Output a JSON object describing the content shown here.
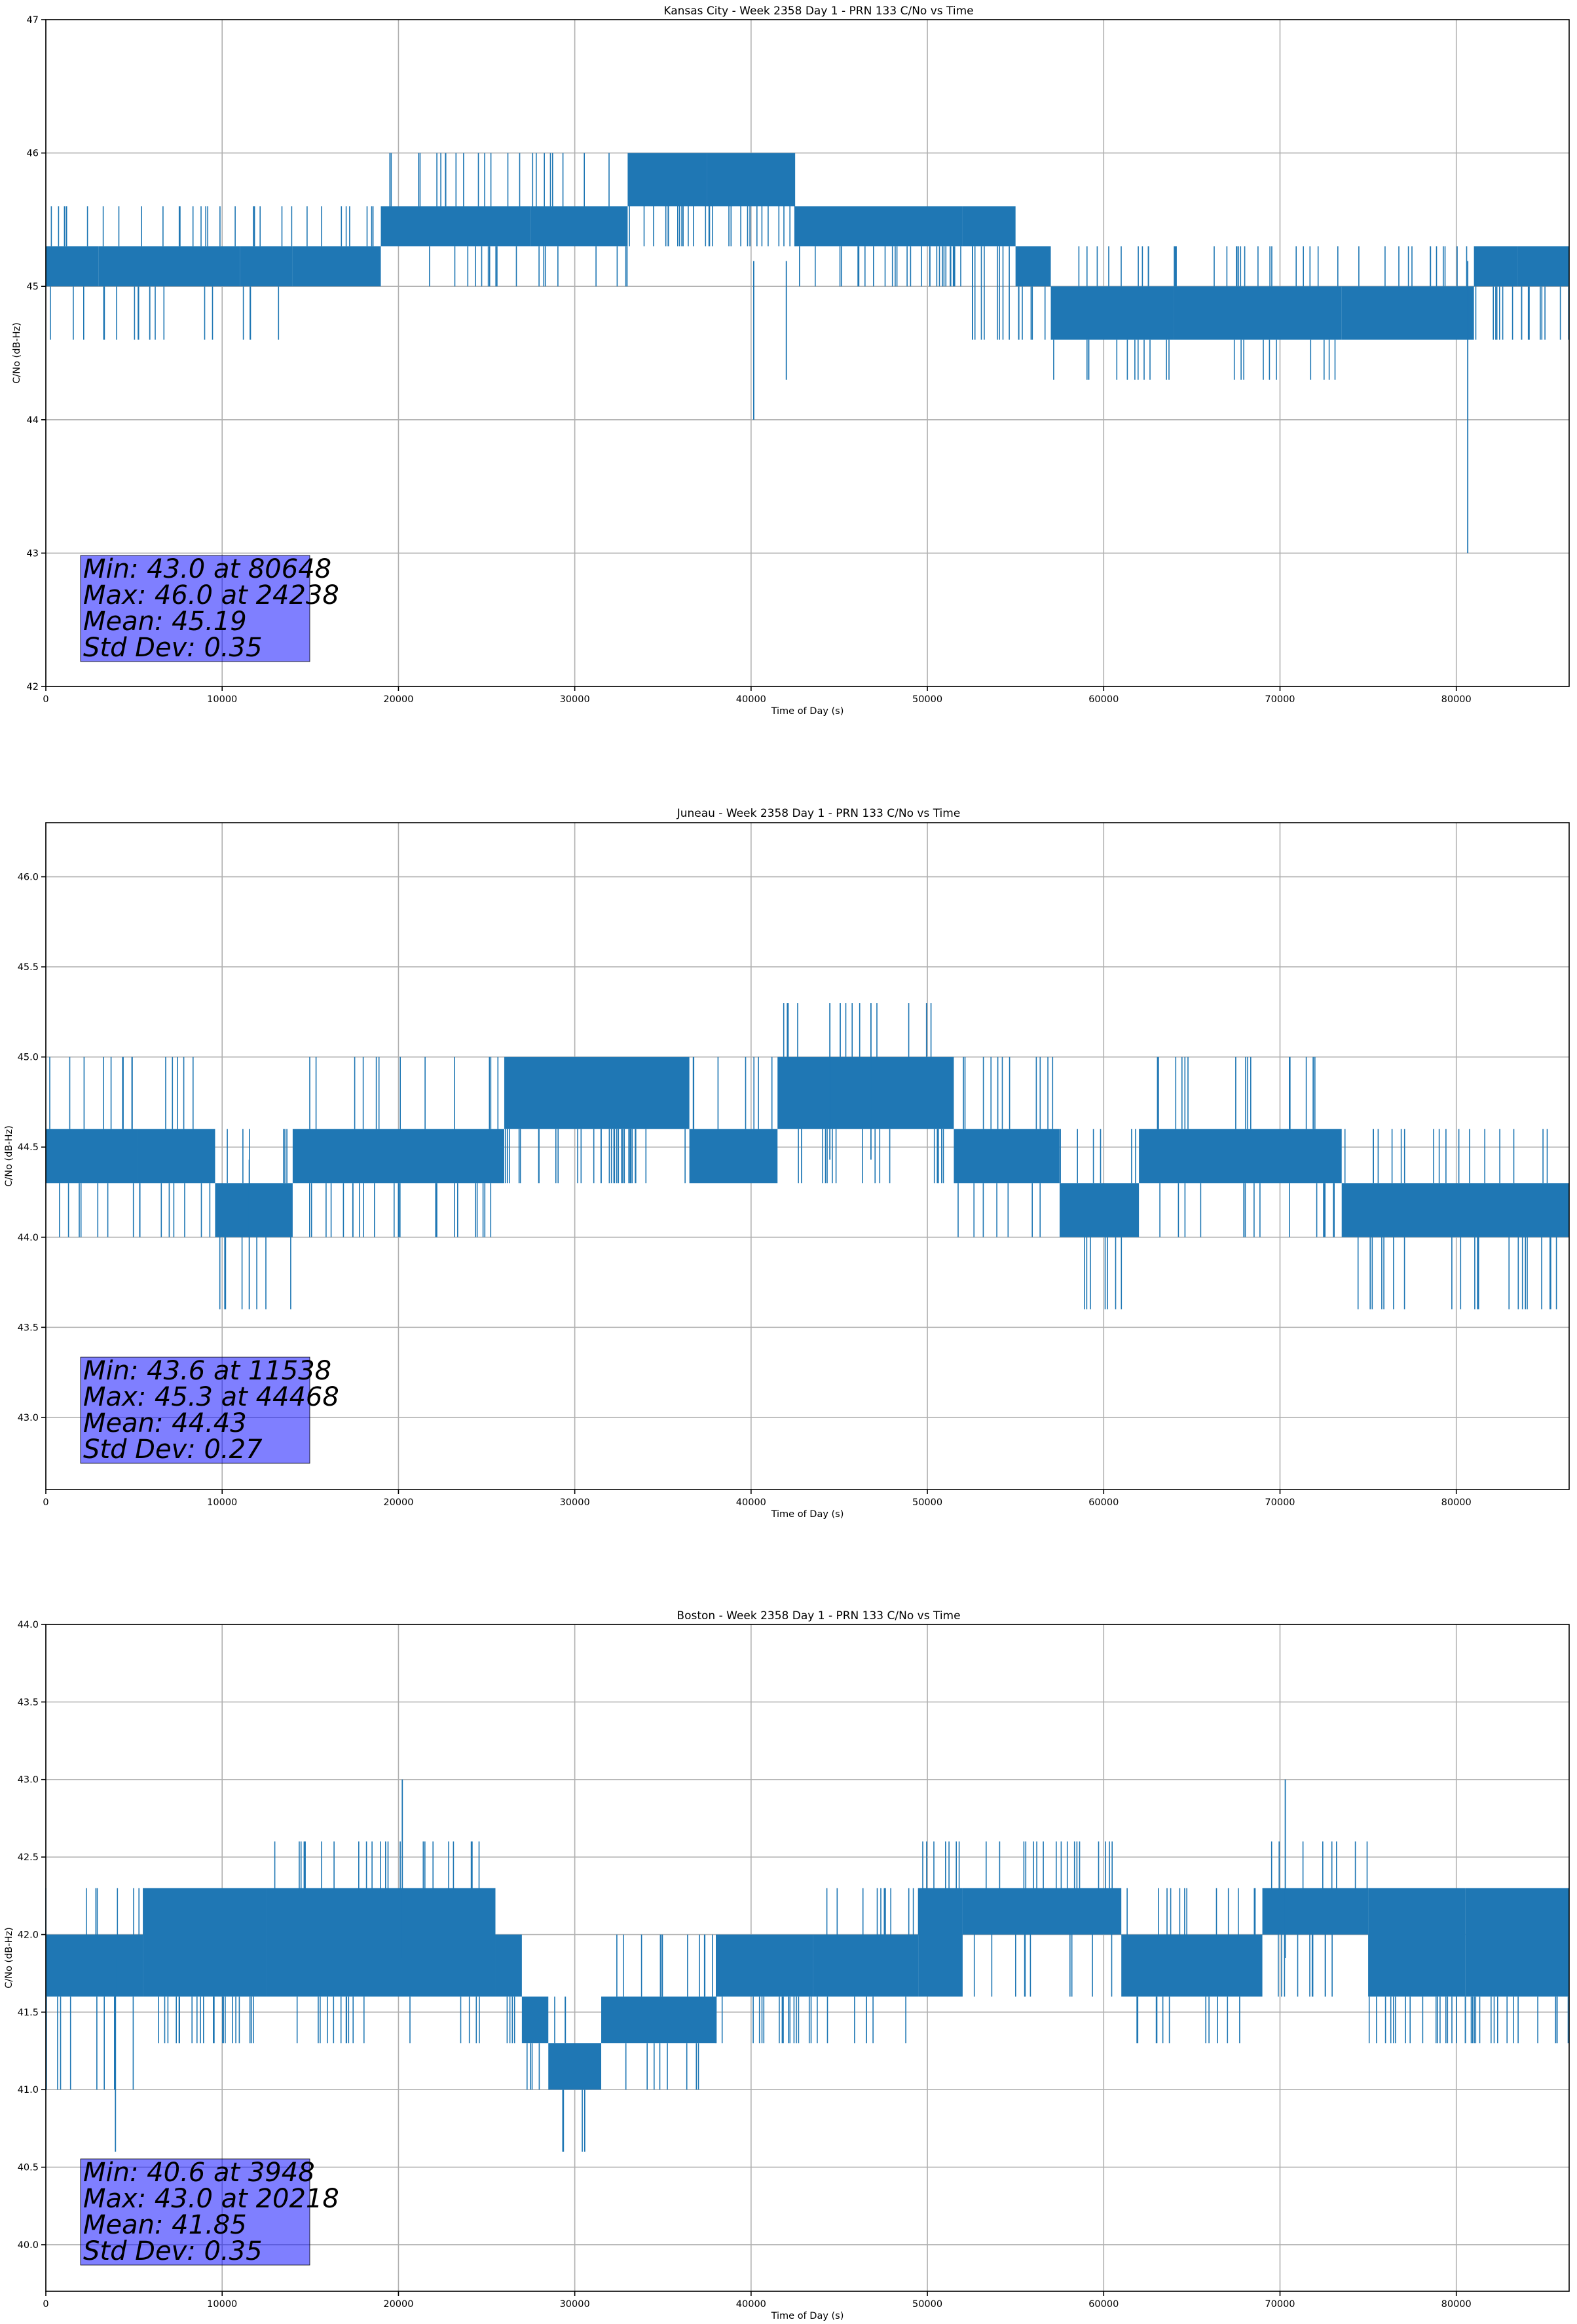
{
  "chart_data": [
    {
      "type": "line",
      "title": "Kansas City - Week 2358 Day 1 - PRN 133 C/No vs Time",
      "xlabel": "Time of Day (s)",
      "ylabel": "C/No (dB-Hz)",
      "xlim": [
        0,
        86400
      ],
      "ylim": [
        42,
        47
      ],
      "xticks": [
        0,
        10000,
        20000,
        30000,
        40000,
        50000,
        60000,
        70000,
        80000
      ],
      "yticks": [
        42,
        43,
        44,
        45,
        46,
        47
      ],
      "ytick_labels": [
        "42",
        "43",
        "44",
        "45",
        "46",
        "47"
      ],
      "grid": true,
      "series_color": "#1f77b4",
      "series": [
        {
          "name": "C/No",
          "segments": [
            {
              "x": [
                0,
                3000
              ],
              "low": 45.0,
              "high": 45.3,
              "spike_low": 44.6,
              "spike_high": 45.6
            },
            {
              "x": [
                3000,
                11000
              ],
              "low": 45.0,
              "high": 45.3,
              "spike_low": 44.6,
              "spike_high": 45.6
            },
            {
              "x": [
                11000,
                14000
              ],
              "low": 45.0,
              "high": 45.3,
              "spike_low": 44.6,
              "spike_high": 45.6
            },
            {
              "x": [
                14000,
                19000
              ],
              "low": 45.0,
              "high": 45.3,
              "spike_low": 45.0,
              "spike_high": 45.6
            },
            {
              "x": [
                19000,
                27500
              ],
              "low": 45.3,
              "high": 45.6,
              "spike_low": 45.0,
              "spike_high": 46.0
            },
            {
              "x": [
                27500,
                33000
              ],
              "low": 45.3,
              "high": 45.6,
              "spike_low": 45.0,
              "spike_high": 46.0
            },
            {
              "x": [
                33000,
                37500
              ],
              "low": 45.6,
              "high": 46.0,
              "spike_low": 45.3,
              "spike_high": 46.0
            },
            {
              "x": [
                37500,
                42500
              ],
              "low": 45.6,
              "high": 46.0,
              "spike_low": 45.3,
              "spike_high": 46.0
            },
            {
              "x": [
                42500,
                52000
              ],
              "low": 45.3,
              "high": 45.6,
              "spike_low": 45.0,
              "spike_high": 45.6
            },
            {
              "x": [
                52000,
                55000
              ],
              "low": 45.3,
              "high": 45.6,
              "spike_low": 44.6,
              "spike_high": 45.6
            },
            {
              "x": [
                55000,
                57000
              ],
              "low": 45.0,
              "high": 45.3,
              "spike_low": 44.6,
              "spike_high": 45.3
            },
            {
              "x": [
                57000,
                64000
              ],
              "low": 44.6,
              "high": 45.0,
              "spike_low": 44.3,
              "spike_high": 45.3
            },
            {
              "x": [
                64000,
                73500
              ],
              "low": 44.6,
              "high": 45.0,
              "spike_low": 44.3,
              "spike_high": 45.3
            },
            {
              "x": [
                73500,
                81000
              ],
              "low": 44.6,
              "high": 45.0,
              "spike_low": 44.6,
              "spike_high": 45.3
            },
            {
              "x": [
                81000,
                83500
              ],
              "low": 45.0,
              "high": 45.3,
              "spike_low": 44.6,
              "spike_high": 45.3
            },
            {
              "x": [
                83500,
                86400
              ],
              "low": 45.0,
              "high": 45.3,
              "spike_low": 44.6,
              "spike_high": 45.3
            }
          ]
        }
      ],
      "min": {
        "value": 43.0,
        "time": 80648
      },
      "max": {
        "value": 46.0,
        "time": 24238
      },
      "mean": 45.19,
      "std_dev": 0.35,
      "outliers": [
        {
          "x": 40150,
          "y": 44.0
        },
        {
          "x": 42000,
          "y": 44.3
        },
        {
          "x": 80648,
          "y": 43.0
        }
      ],
      "annotation": [
        "Min: 43.0 at 80648",
        "Max: 46.0 at 24238",
        "Mean: 45.19",
        "Std Dev: 0.35"
      ]
    },
    {
      "type": "line",
      "title": "Juneau - Week 2358 Day 1 - PRN 133 C/No vs Time",
      "xlabel": "Time of Day (s)",
      "ylabel": "C/No (dB-Hz)",
      "xlim": [
        0,
        86400
      ],
      "ylim": [
        42.6,
        46.3
      ],
      "xticks": [
        0,
        10000,
        20000,
        30000,
        40000,
        50000,
        60000,
        70000,
        80000
      ],
      "yticks": [
        43.0,
        43.5,
        44.0,
        44.5,
        45.0,
        45.5,
        46.0
      ],
      "ytick_labels": [
        "43.0",
        "43.5",
        "44.0",
        "44.5",
        "45.0",
        "45.5",
        "46.0"
      ],
      "grid": true,
      "series_color": "#1f77b4",
      "series": [
        {
          "name": "C/No",
          "segments": [
            {
              "x": [
                0,
                5200
              ],
              "low": 44.3,
              "high": 44.6,
              "spike_low": 44.0,
              "spike_high": 45.0
            },
            {
              "x": [
                5200,
                9600
              ],
              "low": 44.3,
              "high": 44.6,
              "spike_low": 44.0,
              "spike_high": 45.0
            },
            {
              "x": [
                9600,
                14000
              ],
              "low": 44.0,
              "high": 44.3,
              "spike_low": 43.6,
              "spike_high": 44.6
            },
            {
              "x": [
                14000,
                26000
              ],
              "low": 44.3,
              "high": 44.6,
              "spike_low": 44.0,
              "spike_high": 45.0
            },
            {
              "x": [
                26000,
                36500
              ],
              "low": 44.6,
              "high": 45.0,
              "spike_low": 44.3,
              "spike_high": 45.0
            },
            {
              "x": [
                36500,
                41500
              ],
              "low": 44.3,
              "high": 44.6,
              "spike_low": 44.3,
              "spike_high": 45.0
            },
            {
              "x": [
                41500,
                51500
              ],
              "low": 44.6,
              "high": 45.0,
              "spike_low": 44.3,
              "spike_high": 45.3
            },
            {
              "x": [
                51500,
                57500
              ],
              "low": 44.3,
              "high": 44.6,
              "spike_low": 44.0,
              "spike_high": 45.0
            },
            {
              "x": [
                57500,
                62000
              ],
              "low": 44.0,
              "high": 44.3,
              "spike_low": 43.6,
              "spike_high": 44.6
            },
            {
              "x": [
                62000,
                73500
              ],
              "low": 44.3,
              "high": 44.6,
              "spike_low": 44.0,
              "spike_high": 45.0
            },
            {
              "x": [
                73500,
                86400
              ],
              "low": 44.0,
              "high": 44.3,
              "spike_low": 43.6,
              "spike_high": 44.6
            }
          ]
        }
      ],
      "min": {
        "value": 43.6,
        "time": 11538
      },
      "max": {
        "value": 45.3,
        "time": 44468
      },
      "mean": 44.43,
      "std_dev": 0.27,
      "outliers": [
        {
          "x": 11538,
          "y": 43.6
        },
        {
          "x": 44468,
          "y": 45.3
        },
        {
          "x": 46800,
          "y": 45.3
        }
      ],
      "annotation": [
        "Min: 43.6 at 11538",
        "Max: 45.3 at 44468",
        "Mean: 44.43",
        "Std Dev: 0.27"
      ]
    },
    {
      "type": "line",
      "title": "Boston - Week 2358 Day 1 - PRN 133 C/No vs Time",
      "xlabel": "Time of Day (s)",
      "ylabel": "C/No (dB-Hz)",
      "xlim": [
        0,
        86400
      ],
      "ylim": [
        39.7,
        44.0
      ],
      "xticks": [
        0,
        10000,
        20000,
        30000,
        40000,
        50000,
        60000,
        70000,
        80000
      ],
      "yticks": [
        40.0,
        40.5,
        41.0,
        41.5,
        42.0,
        42.5,
        43.0,
        43.5,
        44.0
      ],
      "ytick_labels": [
        "40.0",
        "40.5",
        "41.0",
        "41.5",
        "42.0",
        "42.5",
        "43.0",
        "43.5",
        "44.0"
      ],
      "grid": true,
      "series_color": "#1f77b4",
      "series": [
        {
          "name": "C/No",
          "segments": [
            {
              "x": [
                0,
                5500
              ],
              "low": 41.6,
              "high": 42.0,
              "spike_low": 41.0,
              "spike_high": 42.3
            },
            {
              "x": [
                5500,
                12500
              ],
              "low": 41.6,
              "high": 42.3,
              "spike_low": 41.3,
              "spike_high": 42.3
            },
            {
              "x": [
                12500,
                25500
              ],
              "low": 41.6,
              "high": 42.3,
              "spike_low": 41.3,
              "spike_high": 42.6
            },
            {
              "x": [
                25500,
                27000
              ],
              "low": 41.6,
              "high": 42.0,
              "spike_low": 41.3,
              "spike_high": 42.0
            },
            {
              "x": [
                27000,
                28500
              ],
              "low": 41.3,
              "high": 41.6,
              "spike_low": 41.0,
              "spike_high": 41.6
            },
            {
              "x": [
                28500,
                31500
              ],
              "low": 41.0,
              "high": 41.3,
              "spike_low": 40.6,
              "spike_high": 41.6
            },
            {
              "x": [
                31500,
                38000
              ],
              "low": 41.3,
              "high": 41.6,
              "spike_low": 41.0,
              "spike_high": 42.0
            },
            {
              "x": [
                38000,
                43500
              ],
              "low": 41.6,
              "high": 42.0,
              "spike_low": 41.3,
              "spike_high": 42.0
            },
            {
              "x": [
                43500,
                49500
              ],
              "low": 41.6,
              "high": 42.0,
              "spike_low": 41.3,
              "spike_high": 42.3
            },
            {
              "x": [
                49500,
                52000
              ],
              "low": 41.6,
              "high": 42.3,
              "spike_low": 41.6,
              "spike_high": 42.6
            },
            {
              "x": [
                52000,
                61000
              ],
              "low": 42.0,
              "high": 42.3,
              "spike_low": 41.6,
              "spike_high": 42.6
            },
            {
              "x": [
                61000,
                69000
              ],
              "low": 41.6,
              "high": 42.0,
              "spike_low": 41.3,
              "spike_high": 42.3
            },
            {
              "x": [
                69000,
                75000
              ],
              "low": 42.0,
              "high": 42.3,
              "spike_low": 41.6,
              "spike_high": 42.6
            },
            {
              "x": [
                75000,
                80500
              ],
              "low": 41.6,
              "high": 42.3,
              "spike_low": 41.3,
              "spike_high": 42.3
            },
            {
              "x": [
                80500,
                86400
              ],
              "low": 41.6,
              "high": 42.3,
              "spike_low": 41.3,
              "spike_high": 42.3
            }
          ]
        }
      ],
      "min": {
        "value": 40.6,
        "time": 3948
      },
      "max": {
        "value": 43.0,
        "time": 20218
      },
      "mean": 41.85,
      "std_dev": 0.35,
      "outliers": [
        {
          "x": 3948,
          "y": 40.6
        },
        {
          "x": 20218,
          "y": 43.0
        },
        {
          "x": 70300,
          "y": 43.0
        }
      ],
      "annotation": [
        "Min: 40.6 at 3948",
        "Max: 43.0 at 20218",
        "Mean: 41.85",
        "Std Dev: 0.35"
      ]
    }
  ]
}
